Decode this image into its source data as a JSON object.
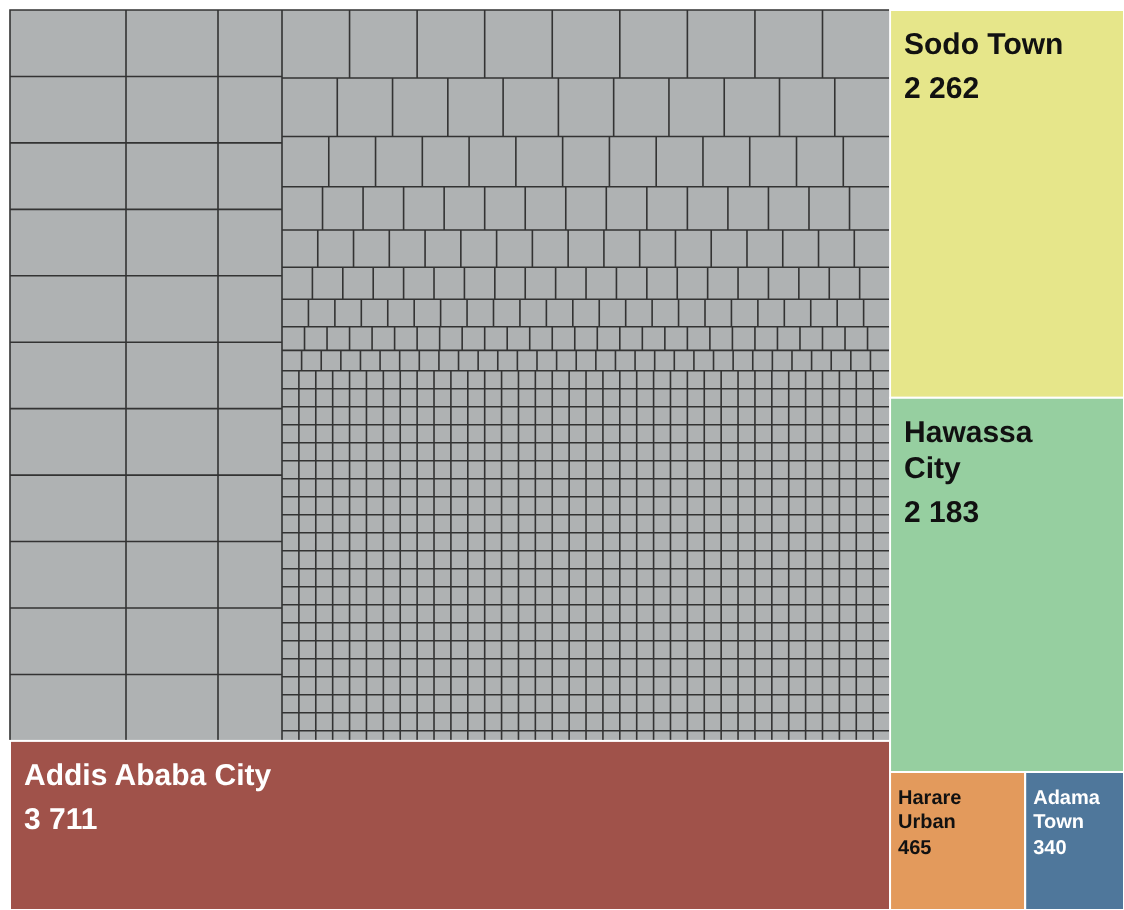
{
  "chart_data": {
    "type": "other",
    "categories": [
      "Addis Ababa City",
      "Sodo Town",
      "Hawassa City",
      "Harare Urban",
      "Adama Town"
    ],
    "values": [
      3711,
      2262,
      2183,
      465,
      340
    ],
    "value_labels": [
      "3 711",
      "2 262",
      "2 183",
      "465",
      "340"
    ],
    "colors": [
      "#a0524a",
      "#e6e68a",
      "#96cfa0",
      "#e39a5c",
      "#4f779b"
    ]
  }
}
